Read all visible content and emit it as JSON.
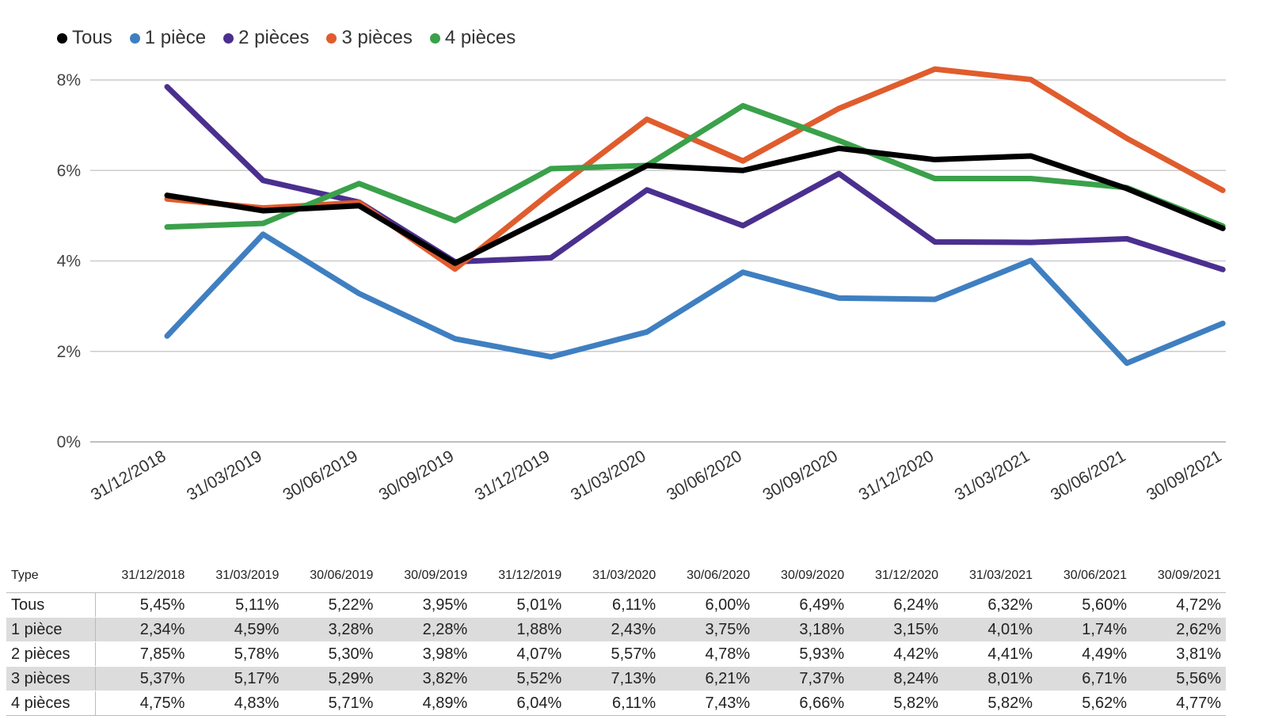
{
  "chart_data": {
    "type": "line",
    "categories": [
      "31/12/2018",
      "31/03/2019",
      "30/06/2019",
      "30/09/2019",
      "31/12/2019",
      "31/03/2020",
      "30/06/2020",
      "30/09/2020",
      "31/12/2020",
      "31/03/2021",
      "30/06/2021",
      "30/09/2021"
    ],
    "series": [
      {
        "name": "Tous",
        "color": "#000000",
        "values": [
          5.45,
          5.11,
          5.22,
          3.95,
          5.01,
          6.11,
          6.0,
          6.49,
          6.24,
          6.32,
          5.6,
          4.72
        ]
      },
      {
        "name": "1 pièce",
        "color": "#3f7fc1",
        "values": [
          2.34,
          4.59,
          3.28,
          2.28,
          1.88,
          2.43,
          3.75,
          3.18,
          3.15,
          4.01,
          1.74,
          2.62
        ]
      },
      {
        "name": "2 pièces",
        "color": "#4b2f8f",
        "values": [
          7.85,
          5.78,
          5.3,
          3.98,
          4.07,
          5.57,
          4.78,
          5.93,
          4.42,
          4.41,
          4.49,
          3.81
        ]
      },
      {
        "name": "3 pièces",
        "color": "#e05c2d",
        "values": [
          5.37,
          5.17,
          5.29,
          3.82,
          5.52,
          7.13,
          6.21,
          7.37,
          8.24,
          8.01,
          6.71,
          5.56
        ]
      },
      {
        "name": "4 pièces",
        "color": "#3aa14a",
        "values": [
          4.75,
          4.83,
          5.71,
          4.89,
          6.04,
          6.11,
          7.43,
          6.66,
          5.82,
          5.82,
          5.62,
          4.77
        ]
      }
    ],
    "ylim": [
      0,
      8
    ],
    "yticks": [
      "0%",
      "2%",
      "4%",
      "6%",
      "8%"
    ],
    "grid": true,
    "legend": "top-left"
  },
  "table": {
    "header": "Type",
    "columns": [
      "31/12/2018",
      "31/03/2019",
      "30/06/2019",
      "30/09/2019",
      "31/12/2019",
      "31/03/2020",
      "30/06/2020",
      "30/09/2020",
      "31/12/2020",
      "31/03/2021",
      "30/06/2021",
      "30/09/2021"
    ],
    "rows": [
      {
        "label": "Tous",
        "cells": [
          "5,45%",
          "5,11%",
          "5,22%",
          "3,95%",
          "5,01%",
          "6,11%",
          "6,00%",
          "6,49%",
          "6,24%",
          "6,32%",
          "5,60%",
          "4,72%"
        ]
      },
      {
        "label": "1 pièce",
        "cells": [
          "2,34%",
          "4,59%",
          "3,28%",
          "2,28%",
          "1,88%",
          "2,43%",
          "3,75%",
          "3,18%",
          "3,15%",
          "4,01%",
          "1,74%",
          "2,62%"
        ]
      },
      {
        "label": "2 pièces",
        "cells": [
          "7,85%",
          "5,78%",
          "5,30%",
          "3,98%",
          "4,07%",
          "5,57%",
          "4,78%",
          "5,93%",
          "4,42%",
          "4,41%",
          "4,49%",
          "3,81%"
        ]
      },
      {
        "label": "3 pièces",
        "cells": [
          "5,37%",
          "5,17%",
          "5,29%",
          "3,82%",
          "5,52%",
          "7,13%",
          "6,21%",
          "7,37%",
          "8,24%",
          "8,01%",
          "6,71%",
          "5,56%"
        ]
      },
      {
        "label": "4 pièces",
        "cells": [
          "4,75%",
          "4,83%",
          "5,71%",
          "4,89%",
          "6,04%",
          "6,11%",
          "7,43%",
          "6,66%",
          "5,82%",
          "5,82%",
          "5,62%",
          "4,77%"
        ]
      }
    ]
  }
}
